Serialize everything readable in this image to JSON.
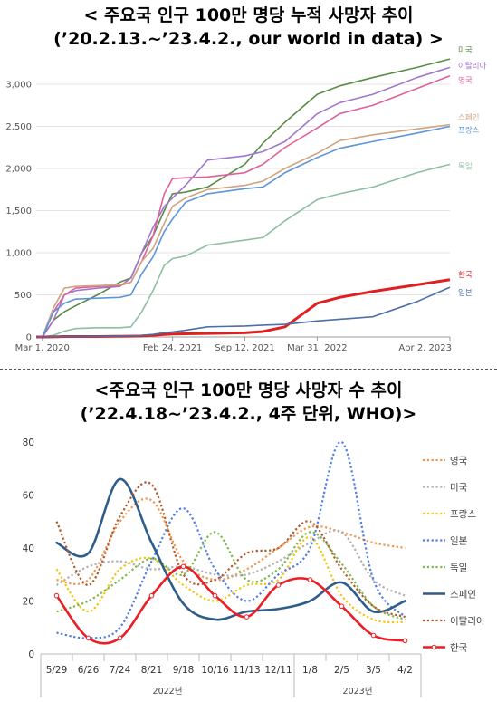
{
  "titles": {
    "chart1_line1": "< 주요국 인구 100만 명당 누적 사망자 추이",
    "chart1_line2": "(’20.2.13.~’23.4.2., our world in data) >",
    "chart2_line1": "<주요국 인구 100만 명당 사망자 수 추이",
    "chart2_line2": "(’22.4.18~’23.4.2., 4주 단위, WHO)>"
  },
  "chart_data": [
    {
      "type": "line",
      "title": "< 주요국 인구 100만 명당 누적 사망자 추이",
      "subtitle": "(’20.2.13.~’23.4.2., our world in data) >",
      "x": [
        "2020-02-13",
        "2020-03-01",
        "2020-04-01",
        "2020-05-01",
        "2020-06-01",
        "2020-08-01",
        "2020-10-01",
        "2020-11-01",
        "2020-12-01",
        "2021-01-01",
        "2021-02-01",
        "2021-02-24",
        "2021-04-01",
        "2021-06-01",
        "2021-09-12",
        "2021-11-01",
        "2022-01-01",
        "2022-03-31",
        "2022-06-01",
        "2022-09-01",
        "2023-01-01",
        "2023-04-02"
      ],
      "x_tick_labels": [
        "Mar 1, 2020",
        "Feb 24, 2021",
        "Sep 12, 2021",
        "Mar 31, 2022",
        "Apr 2, 2023"
      ],
      "x_tick_dates": [
        "2020-03-01",
        "2021-02-24",
        "2021-09-12",
        "2022-03-31",
        "2023-04-02"
      ],
      "ylim": [
        0,
        3300
      ],
      "yticks": [
        0,
        500,
        1000,
        1500,
        2000,
        2500,
        3000
      ],
      "ytick_labels": [
        "0",
        "500",
        "1,000",
        "1,500",
        "2,000",
        "2,500",
        "3,000"
      ],
      "grid": true,
      "legend": "right-end labels",
      "series": [
        {
          "name": "미국",
          "color": "#5b8c45",
          "values": [
            0,
            0,
            200,
            300,
            370,
            500,
            650,
            700,
            1000,
            1200,
            1500,
            1700,
            1720,
            1780,
            2050,
            2300,
            2550,
            2880,
            2980,
            3080,
            3200,
            3300
          ]
        },
        {
          "name": "이탈리아",
          "color": "#a077cc",
          "values": [
            0,
            0,
            200,
            500,
            550,
            580,
            600,
            700,
            1000,
            1300,
            1550,
            1650,
            1800,
            2100,
            2150,
            2200,
            2320,
            2650,
            2780,
            2880,
            3080,
            3200
          ]
        },
        {
          "name": "영국",
          "color": "#e0609a",
          "values": [
            0,
            0,
            300,
            500,
            580,
            600,
            610,
            650,
            900,
            1200,
            1700,
            1880,
            1890,
            1900,
            1950,
            2050,
            2250,
            2480,
            2650,
            2750,
            2950,
            3100
          ]
        },
        {
          "name": "스페인",
          "color": "#cfa57f",
          "values": [
            0,
            0,
            350,
            580,
            600,
            610,
            620,
            650,
            900,
            1050,
            1350,
            1550,
            1650,
            1750,
            1800,
            1850,
            2000,
            2180,
            2330,
            2400,
            2470,
            2520
          ]
        },
        {
          "name": "프랑스",
          "color": "#5e95d8",
          "values": [
            0,
            0,
            300,
            400,
            450,
            460,
            470,
            500,
            750,
            950,
            1250,
            1400,
            1600,
            1700,
            1760,
            1780,
            1950,
            2130,
            2240,
            2320,
            2420,
            2500
          ]
        },
        {
          "name": "독일",
          "color": "#8cbfa0",
          "values": [
            0,
            0,
            20,
            70,
            100,
            110,
            110,
            120,
            300,
            550,
            850,
            930,
            960,
            1090,
            1150,
            1180,
            1380,
            1630,
            1700,
            1780,
            1950,
            2050
          ]
        },
        {
          "name": "한국",
          "color": "#e02020",
          "values": [
            0,
            0,
            2,
            5,
            5,
            6,
            8,
            10,
            12,
            20,
            30,
            35,
            38,
            42,
            50,
            65,
            120,
            400,
            470,
            540,
            620,
            680
          ]
        },
        {
          "name": "일본",
          "color": "#4c6fa8",
          "values": [
            0,
            0,
            2,
            4,
            5,
            6,
            10,
            12,
            20,
            30,
            50,
            60,
            80,
            120,
            130,
            140,
            150,
            190,
            210,
            240,
            420,
            590
          ]
        }
      ]
    },
    {
      "type": "line",
      "title": "<주요국 인구 100만 명당 사망자 수 추이",
      "subtitle": "(’22.4.18~’23.4.2., 4주 단위, WHO)>",
      "categories": [
        "5/29",
        "6/26",
        "7/24",
        "8/21",
        "9/18",
        "10/16",
        "11/13",
        "12/11",
        "1/8",
        "2/5",
        "3/5",
        "4/2"
      ],
      "year_labels": [
        "2022년",
        "2023년"
      ],
      "ylim": [
        0,
        80
      ],
      "yticks": [
        0,
        20,
        40,
        60,
        80
      ],
      "ytick_labels": [
        "0",
        "20",
        "40",
        "60",
        "80"
      ],
      "grid": false,
      "legend": "right",
      "series": [
        {
          "name": "영국",
          "color": "#f0954a",
          "dash": "dot",
          "values": [
            28,
            28,
            50,
            58,
            35,
            28,
            32,
            40,
            48,
            46,
            42,
            40
          ]
        },
        {
          "name": "미국",
          "color": "#b0b0b0",
          "dash": "dot",
          "values": [
            26,
            33,
            35,
            32,
            33,
            30,
            30,
            35,
            42,
            46,
            28,
            22
          ]
        },
        {
          "name": "프랑스",
          "color": "#f2c40f",
          "dash": "dot",
          "values": [
            32,
            16,
            32,
            36,
            26,
            20,
            26,
            28,
            44,
            22,
            13,
            12
          ]
        },
        {
          "name": "일본",
          "color": "#4f7ce6",
          "dash": "dot",
          "values": [
            8,
            6,
            10,
            35,
            55,
            32,
            20,
            30,
            40,
            80,
            28,
            14
          ]
        },
        {
          "name": "독일",
          "color": "#7ab84c",
          "dash": "dot",
          "values": [
            16,
            20,
            28,
            36,
            30,
            46,
            28,
            32,
            46,
            34,
            18,
            13
          ]
        },
        {
          "name": "스페인",
          "color": "#2f5d8a",
          "dash": "solid",
          "values": [
            42,
            38,
            66,
            42,
            19,
            13,
            16,
            17,
            20,
            27,
            16,
            20
          ]
        },
        {
          "name": "이탈리아",
          "color": "#b0582a",
          "dash": "dot",
          "values": [
            50,
            26,
            52,
            64,
            30,
            28,
            38,
            40,
            50,
            32,
            18,
            14
          ]
        },
        {
          "name": "한국",
          "color": "#ee1c24",
          "dash": "solid",
          "values": [
            22,
            6,
            6,
            22,
            33,
            22,
            14,
            26,
            28,
            18,
            7,
            5
          ]
        }
      ]
    }
  ]
}
